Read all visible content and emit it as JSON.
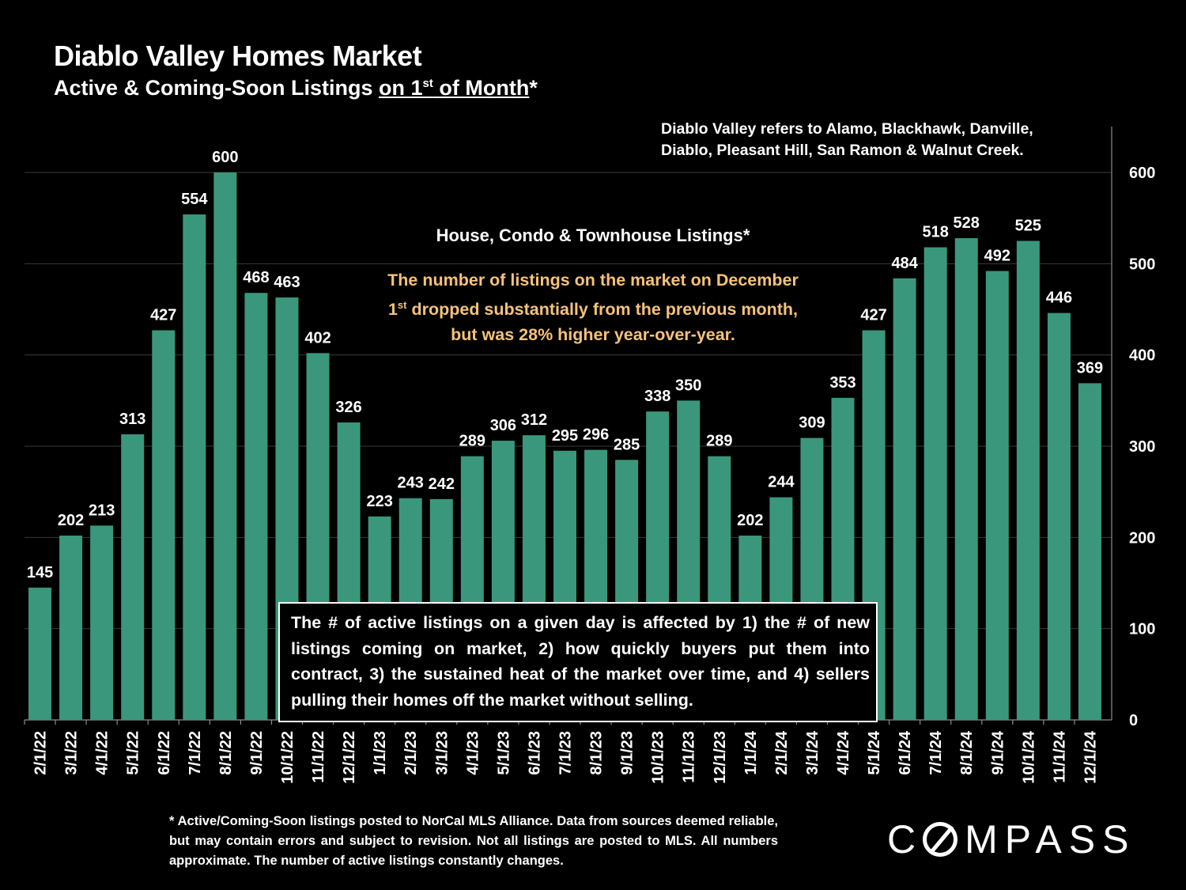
{
  "header": {
    "title": "Diablo Valley Homes Market",
    "subtitle_pre": "Active & Coming-Soon Listings ",
    "subtitle_ul_pre": "on 1",
    "subtitle_sup": "st",
    "subtitle_ul_post": " of Month",
    "subtitle_post": "*"
  },
  "notes": {
    "region": "Diablo Valley refers to Alamo, Blackhawk, Danville, Diablo, Pleasant Hill, San Ramon & Walnut Creek.",
    "series_label": "House, Condo & Townhouse Listings*",
    "insight_line1": "The number of listings on the market on December",
    "insight_line2_num": "1",
    "insight_line2_sup": "st",
    "insight_line2_rest": " dropped substantially from the previous month,",
    "insight_line3": "but was 28% higher year-over-year.",
    "explain": "The # of active listings on a given day is affected by 1) the # of new listings coming on market, 2) how quickly buyers put them into contract, 3) the sustained heat of the market over time, and 4) sellers pulling their homes off the market without selling.",
    "footnote": "* Active/Coming-Soon listings posted to NorCal MLS Alliance. Data from sources deemed reliable, but may contain errors and subject to revision. Not all listings are posted to MLS. All numbers approximate. The number of active listings constantly changes."
  },
  "brand": {
    "logo_pre": "C",
    "logo_post": "MPASS"
  },
  "colors": {
    "bar": "#3a977b",
    "insight": "#f6c27a",
    "background": "#000000"
  },
  "chart_data": {
    "type": "bar",
    "categories": [
      "2/1/22",
      "3/1/22",
      "4/1/22",
      "5/1/22",
      "6/1/22",
      "7/1/22",
      "8/1/22",
      "9/1/22",
      "10/1/22",
      "11/1/22",
      "12/1/22",
      "1/1/23",
      "2/1/23",
      "3/1/23",
      "4/1/23",
      "5/1/23",
      "6/1/23",
      "7/1/23",
      "8/1/23",
      "9/1/23",
      "10/1/23",
      "11/1/23",
      "12/1/23",
      "1/1/24",
      "2/1/24",
      "3/1/24",
      "4/1/24",
      "5/1/24",
      "6/1/24",
      "7/1/24",
      "8/1/24",
      "9/1/24",
      "10/1/24",
      "11/1/24",
      "12/1/24"
    ],
    "values": [
      145,
      202,
      213,
      313,
      427,
      554,
      600,
      468,
      463,
      402,
      326,
      223,
      243,
      242,
      289,
      306,
      312,
      295,
      296,
      285,
      338,
      350,
      289,
      202,
      244,
      309,
      353,
      427,
      484,
      518,
      528,
      492,
      525,
      446,
      369
    ],
    "ylim": [
      0,
      650
    ],
    "yticks": [
      0,
      100,
      200,
      300,
      400,
      500,
      600
    ],
    "yaxis_side": "right",
    "grid": true,
    "data_labels": true
  }
}
